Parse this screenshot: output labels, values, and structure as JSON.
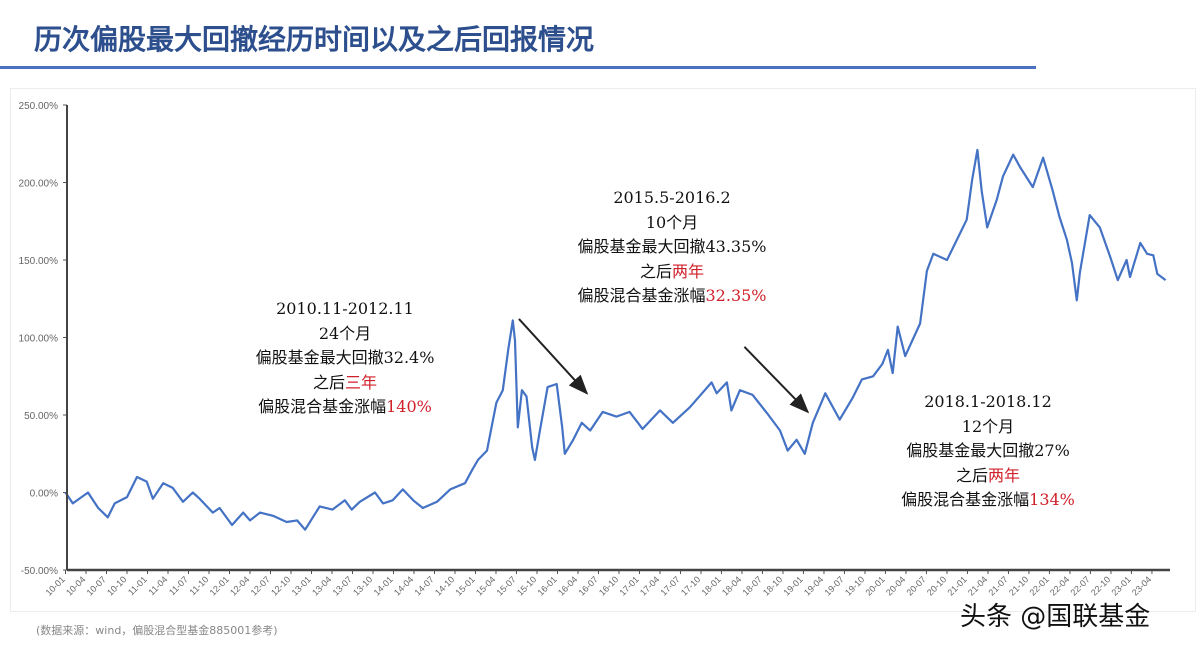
{
  "header": {
    "title": "历次偏股最大回撤经历时间以及之后回报情况"
  },
  "footer": {
    "source": "(数据来源：wind，偏股混合型基金885001参考)",
    "watermark": "头条 @国联基金"
  },
  "colors": {
    "line": "#4472c4",
    "title": "#2d4f8e",
    "rule": "#4a72c0",
    "highlight": "#d0202a",
    "axis": "#555555"
  },
  "chart_data": {
    "type": "line",
    "title": "",
    "xlabel": "",
    "ylabel": "",
    "ylim": [
      -50,
      250
    ],
    "xlim": [
      "2010-01-01",
      "2023-06-15"
    ],
    "grid": false,
    "legend": "none",
    "y_ticks": [
      "250.00%",
      "200.00%",
      "150.00%",
      "100.00%",
      "50.00%",
      "0.00%",
      "-50.00%"
    ],
    "y_tick_values": [
      250,
      200,
      150,
      100,
      50,
      0,
      -50
    ],
    "x_ticks": [
      "10-01",
      "10-04",
      "10-07",
      "10-10",
      "11-01",
      "11-04",
      "11-07",
      "11-10",
      "12-01",
      "12-04",
      "12-07",
      "12-10",
      "13-01",
      "13-04",
      "13-07",
      "13-10",
      "14-01",
      "14-04",
      "14-07",
      "14-10",
      "15-01",
      "15-04",
      "15-07",
      "15-10",
      "16-01",
      "16-04",
      "16-07",
      "16-10",
      "17-01",
      "17-04",
      "17-07",
      "17-10",
      "18-01",
      "18-04",
      "18-07",
      "18-10",
      "19-01",
      "19-04",
      "19-07",
      "19-10",
      "20-01",
      "20-04",
      "20-07",
      "20-10",
      "21-01",
      "21-04",
      "21-07",
      "21-10",
      "22-01",
      "22-04",
      "22-07",
      "22-10",
      "23-01",
      "23-04"
    ],
    "series": [
      {
        "x": [
          "2010-01-01",
          "2010-02-03",
          "2010-04-10",
          "2010-05-25",
          "2010-07-07",
          "2010-08-07",
          "2010-10-01",
          "2010-11-15",
          "2010-12-28",
          "2011-01-25",
          "2011-03-10",
          "2011-04-22",
          "2011-06-07",
          "2011-07-20",
          "2011-08-20",
          "2011-10-18",
          "2011-11-18",
          "2012-01-12",
          "2012-03-01",
          "2012-04-01",
          "2012-05-15",
          "2012-07-12",
          "2012-09-12",
          "2012-10-28",
          "2012-12-03",
          "2013-02-07",
          "2013-04-03",
          "2013-05-28",
          "2013-06-28",
          "2013-08-03",
          "2013-10-10",
          "2013-11-15",
          "2013-12-28",
          "2014-02-12",
          "2014-03-28",
          "2014-05-10",
          "2014-07-12",
          "2014-09-10",
          "2014-11-15",
          "2014-12-18",
          "2015-01-12",
          "2015-02-22",
          "2015-04-03",
          "2015-05-01",
          "2015-05-25",
          "2015-06-15",
          "2015-06-25",
          "2015-07-07",
          "2015-07-25",
          "2015-08-15",
          "2015-09-10",
          "2015-09-22",
          "2015-10-12",
          "2015-11-18",
          "2015-12-28",
          "2016-01-22",
          "2016-02-03",
          "2016-03-10",
          "2016-04-18",
          "2016-05-25",
          "2016-07-20",
          "2016-09-20",
          "2016-11-18",
          "2017-01-15",
          "2017-04-01",
          "2017-05-28",
          "2017-08-12",
          "2017-11-18",
          "2017-12-10",
          "2018-01-25",
          "2018-02-15",
          "2018-03-22",
          "2018-05-18",
          "2018-07-22",
          "2018-09-18",
          "2018-10-22",
          "2018-12-01",
          "2019-01-07",
          "2019-02-12",
          "2019-04-07",
          "2019-06-10",
          "2019-08-07",
          "2019-09-18",
          "2019-11-07",
          "2019-12-18",
          "2020-01-12",
          "2020-02-03",
          "2020-02-25",
          "2020-03-28",
          "2020-06-03",
          "2020-07-03",
          "2020-08-01",
          "2020-10-01",
          "2020-11-28",
          "2020-12-28",
          "2021-01-22",
          "2021-02-15",
          "2021-03-03",
          "2021-03-28",
          "2021-05-10",
          "2021-06-07",
          "2021-07-22",
          "2021-08-22",
          "2021-10-18",
          "2021-12-03",
          "2022-01-15",
          "2022-02-15",
          "2022-03-18",
          "2022-04-10",
          "2022-05-01",
          "2022-05-15",
          "2022-06-28",
          "2022-08-12",
          "2022-09-28",
          "2022-11-01",
          "2022-12-10",
          "2022-12-25",
          "2023-02-10",
          "2023-03-10",
          "2023-04-07",
          "2023-04-25",
          "2023-06-01"
        ],
        "y": [
          0,
          -7,
          0,
          -10,
          -16,
          -7,
          -3,
          10,
          7,
          -4,
          6,
          3,
          -6,
          0,
          -4,
          -13,
          -10,
          -21,
          -13,
          -18,
          -13,
          -15,
          -19,
          -18,
          -24,
          -9,
          -11,
          -5,
          -11,
          -6,
          0,
          -7,
          -5,
          2,
          -5,
          -10,
          -6,
          2,
          6,
          15,
          21,
          27,
          58,
          66,
          92,
          111,
          98,
          42,
          66,
          62,
          29,
          21,
          38,
          68,
          70,
          42,
          25,
          34,
          45,
          40,
          52,
          49,
          52,
          41,
          53,
          45,
          55,
          71,
          64,
          71,
          53,
          66,
          63,
          51,
          40,
          27,
          34,
          25,
          45,
          64,
          47,
          61,
          73,
          75,
          83,
          92,
          77,
          107,
          88,
          109,
          143,
          154,
          150,
          167,
          176,
          202,
          221,
          195,
          171,
          189,
          204,
          218,
          210,
          197,
          216,
          195,
          178,
          163,
          148,
          124,
          142,
          179,
          171,
          152,
          137,
          150,
          139,
          161,
          154,
          153,
          141,
          137
        ]
      }
    ],
    "annotations": [
      {
        "lines": [
          {
            "text": "2010.11-2012.11",
            "highlight": ""
          },
          {
            "text": "24个月",
            "highlight": ""
          },
          {
            "text": "偏股基金最大回撤32.4%",
            "highlight": ""
          },
          {
            "text": "之后",
            "highlight": "三年"
          },
          {
            "text": "偏股混合基金涨幅",
            "highlight": "140%"
          }
        ]
      },
      {
        "lines": [
          {
            "text": "2015.5-2016.2",
            "highlight": ""
          },
          {
            "text": "10个月",
            "highlight": ""
          },
          {
            "text": "偏股基金最大回撤43.35%",
            "highlight": ""
          },
          {
            "text": "之后",
            "highlight": "两年"
          },
          {
            "text": "偏股混合基金涨幅",
            "highlight": "32.35%"
          }
        ]
      },
      {
        "lines": [
          {
            "text": "2018.1-2018.12",
            "highlight": ""
          },
          {
            "text": "12个月",
            "highlight": ""
          },
          {
            "text": "偏股基金最大回撤27%",
            "highlight": ""
          },
          {
            "text": "之后",
            "highlight": "两年"
          },
          {
            "text": "偏股混合基金涨幅",
            "highlight": "134%"
          }
        ]
      }
    ]
  }
}
